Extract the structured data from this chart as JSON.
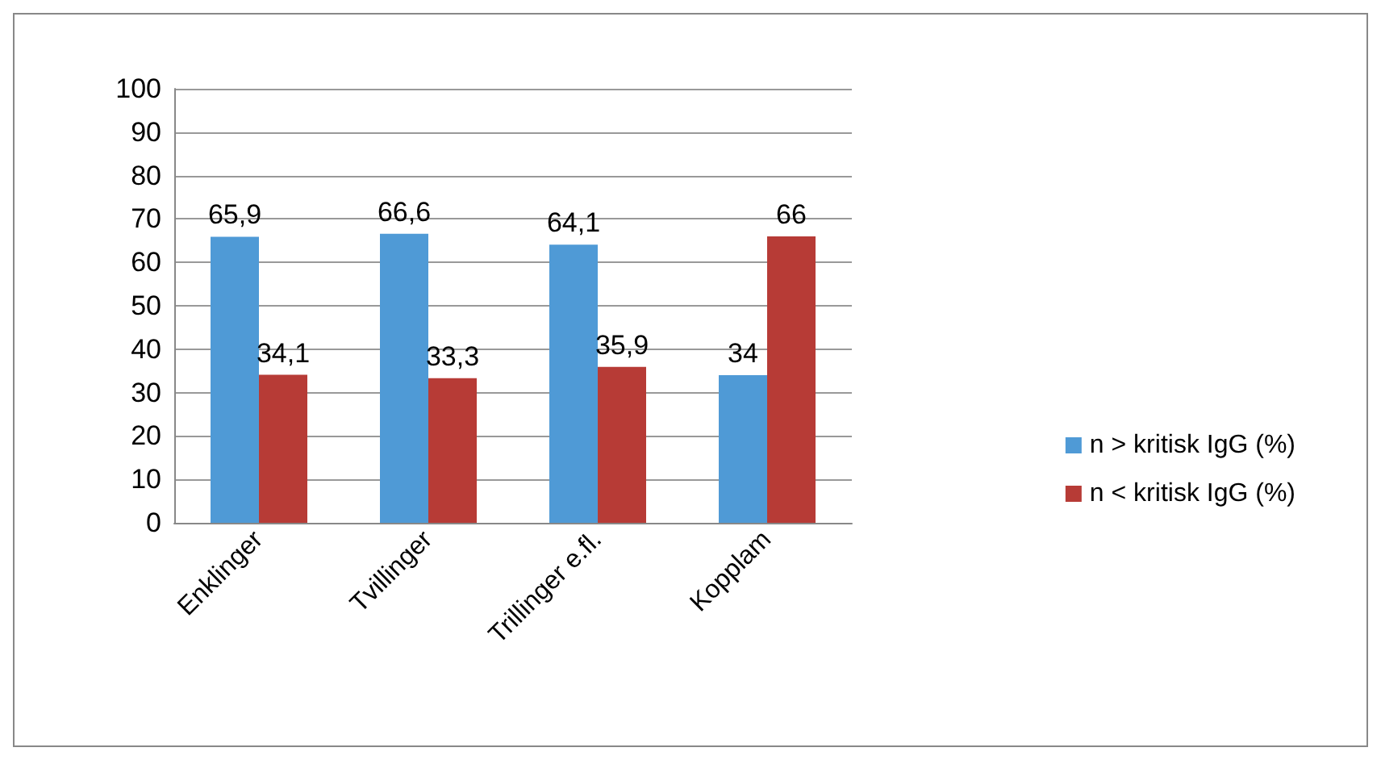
{
  "chart_data": {
    "type": "bar",
    "categories": [
      "Enklinger",
      "Tvillinger",
      "Trillinger e.fl.",
      "Kopplam"
    ],
    "series": [
      {
        "name": "n > kritisk IgG (%)",
        "color": "#4f9ad6",
        "values": [
          65.9,
          66.6,
          64.1,
          34
        ],
        "value_labels": [
          "65,9",
          "66,6",
          "64,1",
          "34"
        ]
      },
      {
        "name": "n < kritisk IgG (%)",
        "color": "#b73b36",
        "values": [
          34.1,
          33.3,
          35.9,
          66
        ],
        "value_labels": [
          "34,1",
          "33,3",
          "35,9",
          "66"
        ]
      }
    ],
    "ylim": [
      0,
      100
    ],
    "yticks": [
      0,
      10,
      20,
      30,
      40,
      50,
      60,
      70,
      80,
      90,
      100
    ],
    "grid": "y",
    "legend": "right"
  }
}
